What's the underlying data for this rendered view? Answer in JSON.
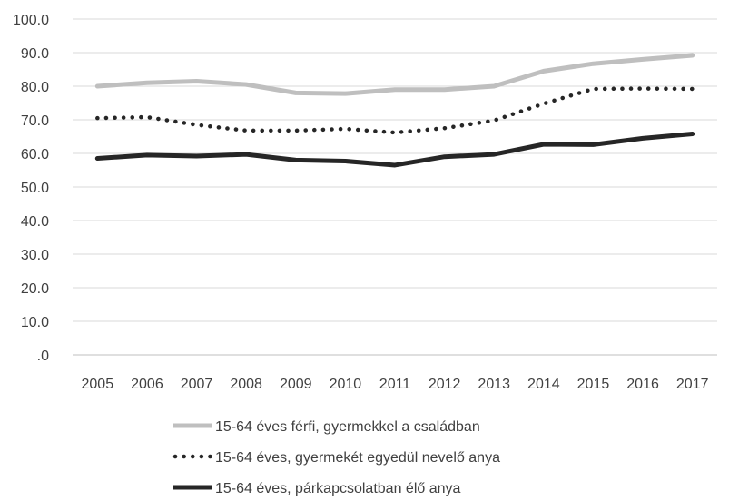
{
  "chart_data": {
    "type": "line",
    "x": [
      "2005",
      "2006",
      "2007",
      "2008",
      "2009",
      "2010",
      "2011",
      "2012",
      "2013",
      "2014",
      "2015",
      "2016",
      "2017"
    ],
    "ylim": [
      0,
      100
    ],
    "yticks": [
      ".0",
      "10.0",
      "20.0",
      "30.0",
      "40.0",
      "50.0",
      "60.0",
      "70.0",
      "80.0",
      "90.0",
      "100.0"
    ],
    "grid": true,
    "legend_position": "bottom",
    "series": [
      {
        "name": "15-64 éves férfi, gyermekkel a családban",
        "values": [
          80.0,
          81.0,
          81.5,
          80.5,
          78.0,
          77.8,
          79.0,
          79.0,
          80.0,
          84.5,
          86.7,
          88.0,
          89.2
        ],
        "color": "#bfbfbf",
        "style": "solid"
      },
      {
        "name": "15-64 éves, gyermekét egyedül nevelő anya",
        "values": [
          70.5,
          70.8,
          68.5,
          66.8,
          66.8,
          67.3,
          66.2,
          67.5,
          69.8,
          74.8,
          79.2,
          79.3,
          79.2
        ],
        "color": "#262626",
        "style": "dotted"
      },
      {
        "name": "15-64 éves, párkapcsolatban élő anya",
        "values": [
          58.5,
          59.5,
          59.2,
          59.7,
          58.0,
          57.7,
          56.5,
          59.0,
          59.7,
          62.7,
          62.6,
          64.5,
          65.8
        ],
        "color": "#262626",
        "style": "solid"
      }
    ]
  }
}
